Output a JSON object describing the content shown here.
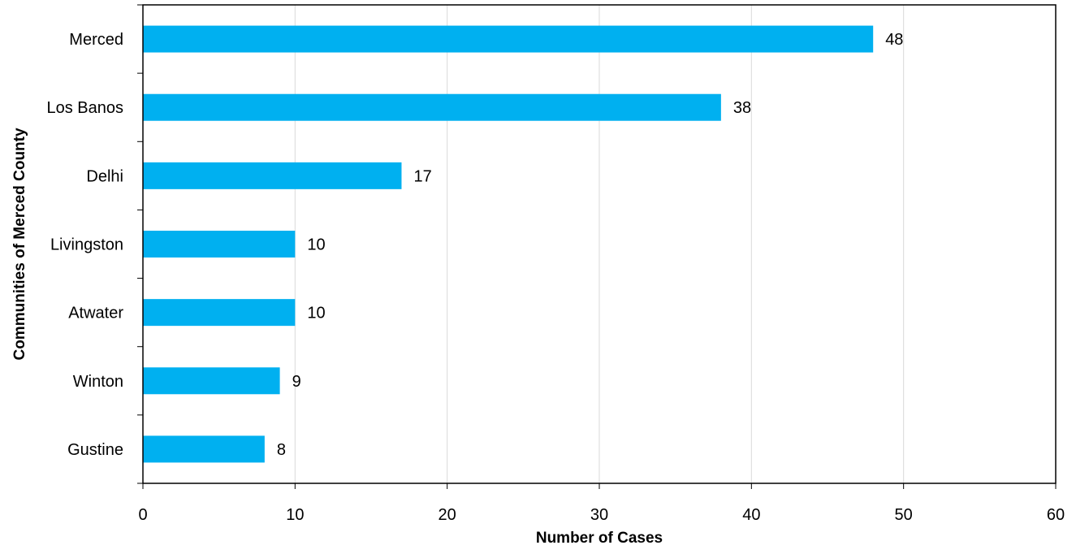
{
  "chart_data": {
    "type": "bar",
    "orientation": "horizontal",
    "title": "",
    "categories": [
      "Merced",
      "Los Banos",
      "Delhi",
      "Livingston",
      "Atwater",
      "Winton",
      "Gustine"
    ],
    "values": [
      48,
      38,
      17,
      10,
      10,
      9,
      8
    ],
    "xlabel": "Number of Cases",
    "ylabel": "Communities of Merced County",
    "xlim": [
      0,
      60
    ],
    "xticks": [
      0,
      10,
      20,
      30,
      40,
      50,
      60
    ],
    "grid": "vertical",
    "legend": "none",
    "colors": {
      "bar": "#00B0F0",
      "grid": "#D9D9D9",
      "axis": "#000000"
    }
  }
}
